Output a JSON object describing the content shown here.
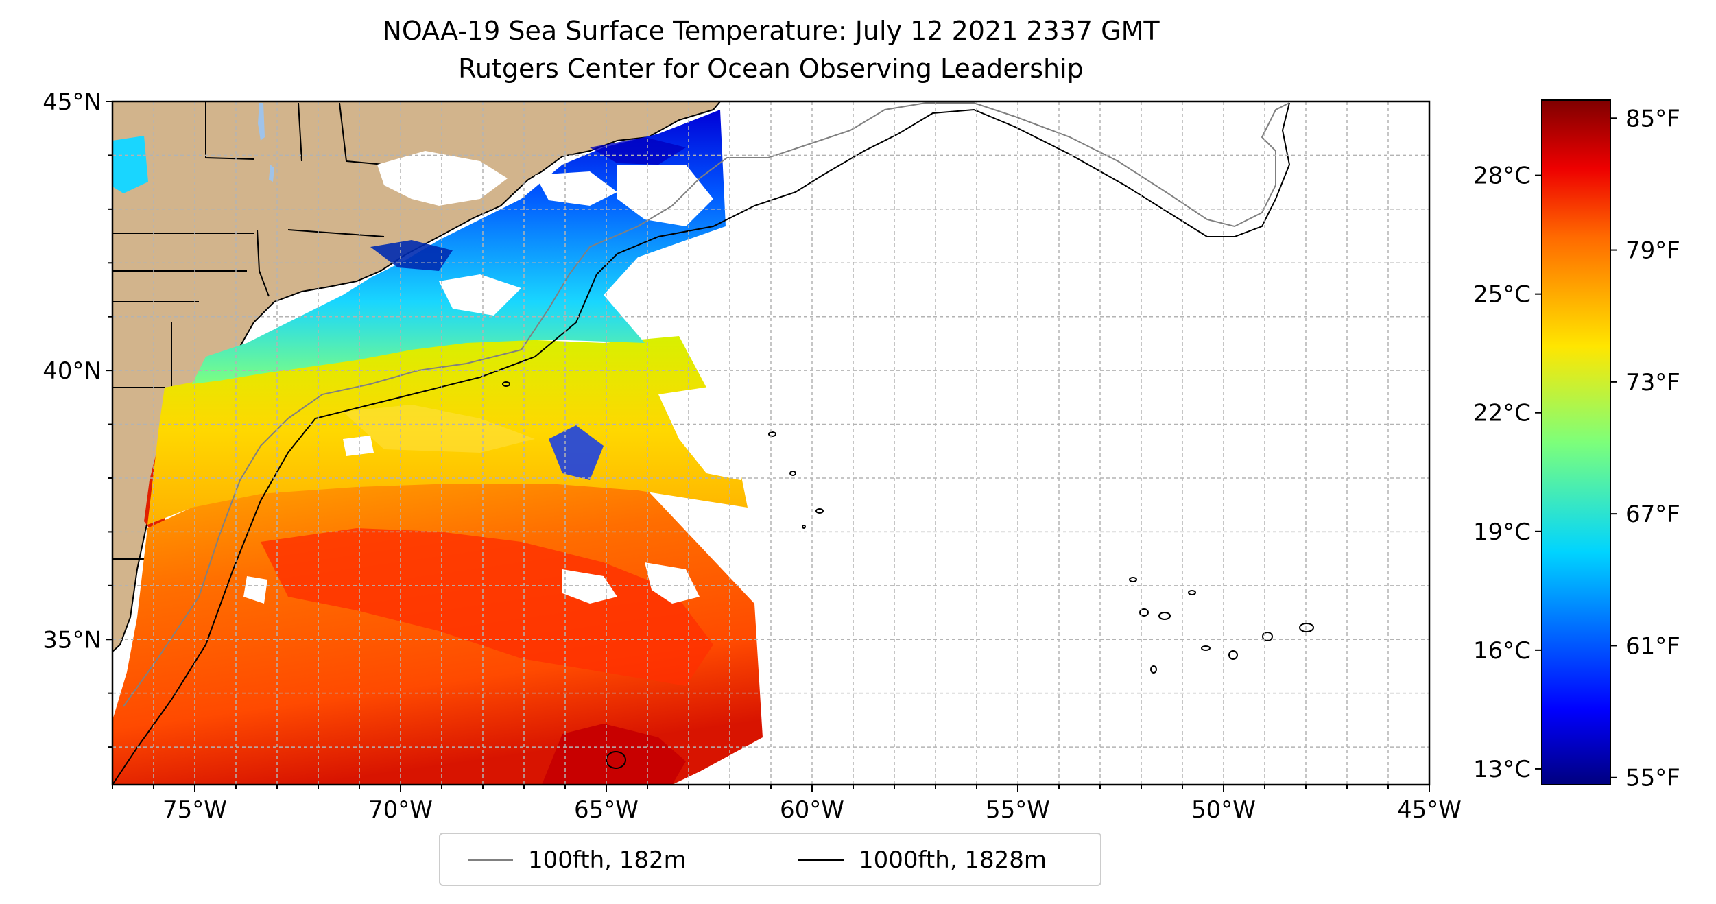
{
  "title": {
    "line1": "NOAA-19 Sea Surface Temperature: July 12 2021 2337 GMT",
    "line2": "Rutgers Center for Ocean Observing Leadership"
  },
  "map": {
    "lon_range": [
      -77,
      -45
    ],
    "lat_range": [
      32.3,
      45
    ],
    "lon_ticks": [
      {
        "value": -75,
        "label": "75°W"
      },
      {
        "value": -70,
        "label": "70°W"
      },
      {
        "value": -65,
        "label": "65°W"
      },
      {
        "value": -60,
        "label": "60°W"
      },
      {
        "value": -55,
        "label": "55°W"
      },
      {
        "value": -50,
        "label": "50°W"
      },
      {
        "value": -45,
        "label": "45°W"
      }
    ],
    "lat_ticks": [
      {
        "value": 45,
        "label": "45°N"
      },
      {
        "value": 40,
        "label": "40°N"
      },
      {
        "value": 35,
        "label": "35°N"
      }
    ],
    "gridlines": true,
    "gridline_step_deg": 1,
    "land_color": "#d2b48c",
    "lake_color": "#9fc3ea"
  },
  "colorbar": {
    "colormap": "jet",
    "celsius_range": [
      12.6,
      29.9
    ],
    "celsius_ticks": [
      {
        "value": 13,
        "label": "13°C"
      },
      {
        "value": 16,
        "label": "16°C"
      },
      {
        "value": 19,
        "label": "19°C"
      },
      {
        "value": 22,
        "label": "22°C"
      },
      {
        "value": 25,
        "label": "25°C"
      },
      {
        "value": 28,
        "label": "28°C"
      }
    ],
    "fahrenheit_ticks": [
      {
        "value": 55,
        "label": "55°F"
      },
      {
        "value": 61,
        "label": "61°F"
      },
      {
        "value": 67,
        "label": "67°F"
      },
      {
        "value": 73,
        "label": "73°F"
      },
      {
        "value": 79,
        "label": "79°F"
      },
      {
        "value": 85,
        "label": "85°F"
      }
    ]
  },
  "legend": {
    "items": [
      {
        "label": "100fth, 182m",
        "color": "#808080"
      },
      {
        "label": "1000fth, 1828m",
        "color": "#000000"
      }
    ]
  }
}
